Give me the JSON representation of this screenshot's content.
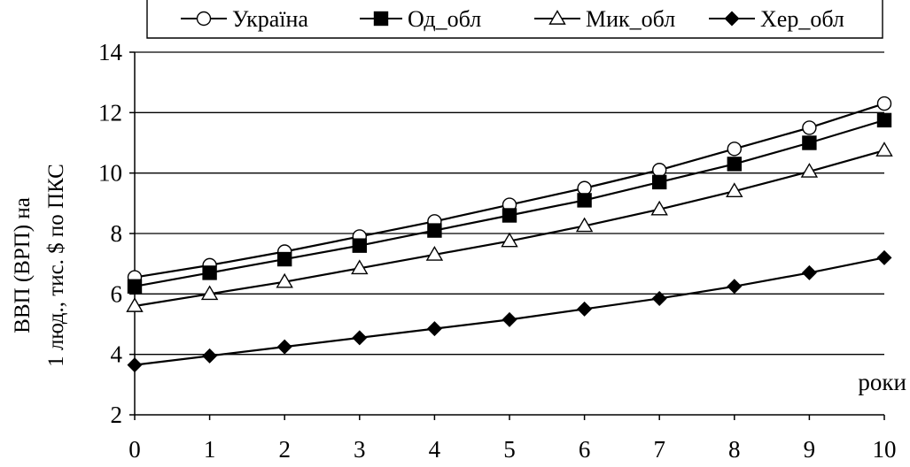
{
  "chart_data": {
    "type": "line",
    "title": "",
    "ylabel_lines": [
      "ВВП (ВРП) на",
      "1 люд., тис. $ по ПКС"
    ],
    "xlabel": "роки",
    "x": [
      0,
      1,
      2,
      3,
      4,
      5,
      6,
      7,
      8,
      9,
      10
    ],
    "xticks": [
      "0",
      "1",
      "2",
      "3",
      "4",
      "5",
      "6",
      "7",
      "8",
      "9",
      "10"
    ],
    "ylim": [
      2,
      14
    ],
    "yticks": [
      "2",
      "4",
      "6",
      "8",
      "10",
      "12",
      "14"
    ],
    "grid": true,
    "legend_position": "top",
    "series": [
      {
        "name": "Україна",
        "marker": "circle-open",
        "values": [
          6.55,
          6.95,
          7.4,
          7.9,
          8.4,
          8.95,
          9.5,
          10.1,
          10.8,
          11.5,
          12.3
        ]
      },
      {
        "name": "Од_обл",
        "marker": "square-filled",
        "values": [
          6.25,
          6.7,
          7.15,
          7.6,
          8.1,
          8.6,
          9.1,
          9.7,
          10.3,
          11.0,
          11.75
        ]
      },
      {
        "name": "Мик_обл",
        "marker": "triangle-open",
        "values": [
          5.6,
          6.0,
          6.4,
          6.85,
          7.3,
          7.75,
          8.25,
          8.8,
          9.4,
          10.05,
          10.75
        ]
      },
      {
        "name": "Хер_обл",
        "marker": "diamond-filled",
        "values": [
          3.65,
          3.95,
          4.25,
          4.55,
          4.85,
          5.15,
          5.5,
          5.85,
          6.25,
          6.7,
          7.2
        ]
      }
    ],
    "colors": {
      "line": "#000000",
      "grid": "#000000",
      "background": "#ffffff"
    }
  }
}
